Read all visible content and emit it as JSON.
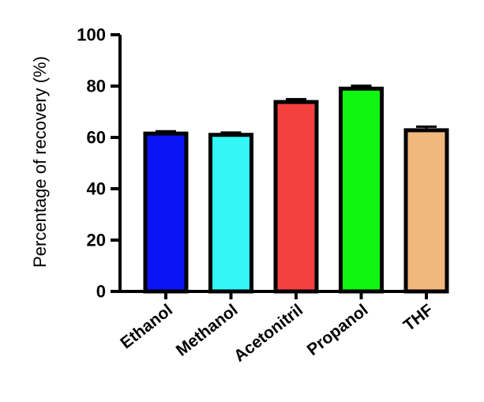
{
  "chart_data": {
    "type": "bar",
    "categories": [
      "Ethanol",
      "Methanol",
      "Acetonitril",
      "Propanol",
      "THF"
    ],
    "values": [
      61.5,
      61.0,
      73.8,
      79.0,
      62.8
    ],
    "errors": [
      0.9,
      0.9,
      1.1,
      1.1,
      1.4
    ],
    "colors": [
      "#0a14f5",
      "#33f7f7",
      "#f54040",
      "#0ff50f",
      "#f0b87d"
    ],
    "title": "",
    "xlabel": "",
    "ylabel": "Percentage of recovery (%)",
    "ylim": [
      0,
      100
    ],
    "yticks": [
      "0",
      "20",
      "40",
      "60",
      "80",
      "100"
    ],
    "grid": false,
    "legend": "none"
  }
}
